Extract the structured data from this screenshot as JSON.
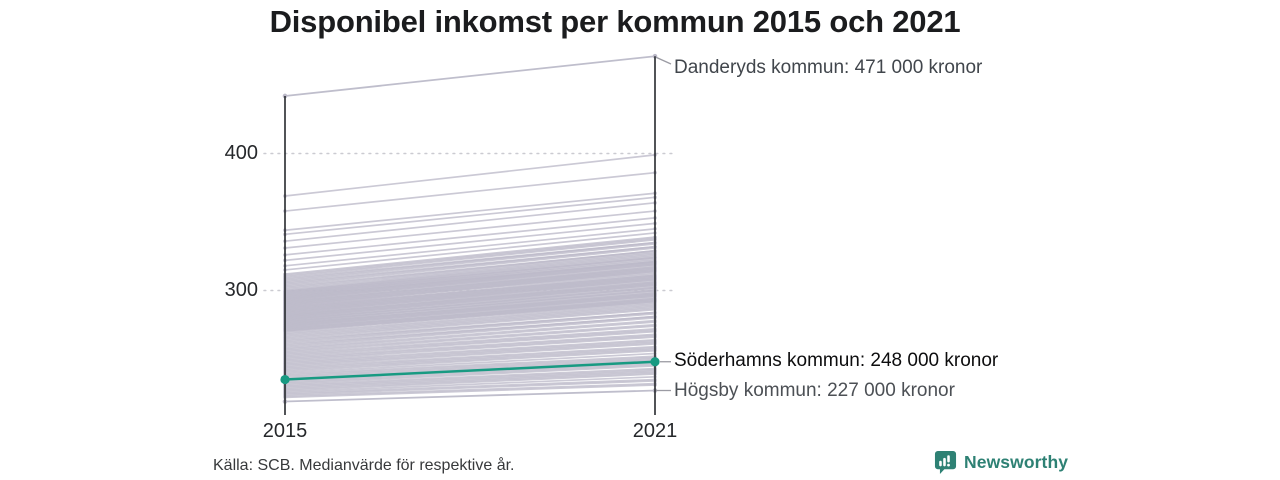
{
  "title": "Disponibel inkomst per kommun 2015 och 2021",
  "source_note": "Källa: SCB. Medianvärde för respektive år.",
  "branding": {
    "logo_label": "Newsworthy",
    "logo_color": "#2e8174"
  },
  "chart_data": {
    "type": "line",
    "subtype": "slope-chart",
    "title": "Disponibel inkomst per kommun 2015 och 2021",
    "x": [
      2015,
      2021
    ],
    "x_tick_labels": [
      "2015",
      "2021"
    ],
    "y_ticks": [
      400,
      300
    ],
    "y_tick_display": [
      "400",
      "300"
    ],
    "ylim": [
      209,
      472
    ],
    "unit": "tusen kronor",
    "grid": "dotted horizontal lines at y ticks",
    "legend_position": "none",
    "colors": {
      "highlight": "#189a82",
      "background_line": "#bcbac9",
      "axis": "#26292d",
      "grid": "#cbcbd1",
      "connector": "#9b9ba3"
    },
    "highlighted_series": [
      {
        "name": "Danderyds kommun",
        "values": [
          442,
          471
        ],
        "label": "Danderyds kommun: 471 000 kronor",
        "line_color": "#bcbac9",
        "label_color": "#41464c"
      },
      {
        "name": "Söderhamns kommun",
        "values": [
          235,
          248
        ],
        "label": "Söderhamns kommun: 248 000 kronor",
        "line_color": "#189a82",
        "label_color": "#0d0d0e"
      },
      {
        "name": "Högsby kommun",
        "values": [
          219,
          227
        ],
        "label": "Högsby kommun: 227 000 kronor",
        "line_color": "#bcbac9",
        "label_color": "#4c5055"
      }
    ],
    "background_series_estimated": [
      [
        369,
        399
      ],
      [
        358,
        386
      ],
      [
        344,
        371
      ],
      [
        341,
        368
      ],
      [
        336,
        364
      ],
      [
        331,
        358
      ],
      [
        326,
        353
      ],
      [
        322,
        349
      ],
      [
        318,
        345
      ],
      [
        315,
        342
      ],
      [
        312,
        339
      ],
      [
        311,
        338
      ],
      [
        310,
        337
      ],
      [
        309,
        335
      ],
      [
        308,
        335
      ],
      [
        307,
        334
      ],
      [
        306,
        332
      ],
      [
        305,
        332
      ],
      [
        304,
        331
      ],
      [
        303,
        329
      ],
      [
        302,
        329
      ],
      [
        301,
        328
      ],
      [
        300,
        327
      ],
      [
        299.5,
        326
      ],
      [
        299,
        325
      ],
      [
        298.5,
        324
      ],
      [
        298,
        324
      ],
      [
        297.5,
        322
      ],
      [
        297,
        323
      ],
      [
        296.5,
        321
      ],
      [
        296,
        321
      ],
      [
        295.5,
        320
      ],
      [
        295,
        321
      ],
      [
        294.5,
        319
      ],
      [
        294,
        320
      ],
      [
        293.5,
        318
      ],
      [
        293,
        319
      ],
      [
        292.5,
        317
      ],
      [
        292,
        316
      ],
      [
        291.5,
        317
      ],
      [
        291,
        315
      ],
      [
        290.5,
        316
      ],
      [
        290,
        314
      ],
      [
        289.5,
        315
      ],
      [
        289,
        313
      ],
      [
        288.5,
        314
      ],
      [
        288,
        311
      ],
      [
        287.5,
        312
      ],
      [
        287,
        310
      ],
      [
        286.5,
        311
      ],
      [
        286,
        309
      ],
      [
        285.5,
        310
      ],
      [
        285,
        308
      ],
      [
        284.5,
        309
      ],
      [
        284,
        307
      ],
      [
        283.5,
        308
      ],
      [
        283,
        306
      ],
      [
        282.5,
        305
      ],
      [
        282,
        306
      ],
      [
        281.5,
        304
      ],
      [
        281,
        305
      ],
      [
        280.5,
        303
      ],
      [
        280,
        304
      ],
      [
        279.5,
        302
      ],
      [
        279,
        301
      ],
      [
        278.5,
        302
      ],
      [
        278,
        300
      ],
      [
        277.5,
        299
      ],
      [
        277,
        300
      ],
      [
        276.5,
        298
      ],
      [
        276,
        297
      ],
      [
        275.5,
        298
      ],
      [
        275,
        296
      ],
      [
        274.5,
        297
      ],
      [
        274,
        295
      ],
      [
        273.5,
        296
      ],
      [
        273,
        294
      ],
      [
        272.5,
        293
      ],
      [
        272,
        294
      ],
      [
        271.5,
        292
      ],
      [
        271,
        293
      ],
      [
        270.5,
        291
      ],
      [
        270,
        292
      ],
      [
        269,
        290
      ],
      [
        268,
        289
      ],
      [
        267,
        288
      ],
      [
        266,
        287
      ],
      [
        265,
        286
      ],
      [
        264,
        284
      ],
      [
        263,
        284
      ],
      [
        262,
        283
      ],
      [
        261,
        281
      ],
      [
        260,
        281
      ],
      [
        259,
        280
      ],
      [
        258,
        278
      ],
      [
        257,
        277
      ],
      [
        256,
        275
      ],
      [
        255,
        274
      ],
      [
        254,
        272
      ],
      [
        253,
        271
      ],
      [
        252,
        270
      ],
      [
        251,
        268
      ],
      [
        250,
        267
      ],
      [
        249,
        266
      ],
      [
        248,
        264
      ],
      [
        247,
        263
      ],
      [
        246,
        262
      ],
      [
        245,
        261
      ],
      [
        244,
        259
      ],
      [
        243,
        258
      ],
      [
        242,
        257
      ],
      [
        241,
        256
      ],
      [
        240,
        254
      ],
      [
        239,
        252
      ],
      [
        238,
        251
      ],
      [
        237,
        250
      ],
      [
        236,
        249
      ],
      [
        235,
        248.5
      ],
      [
        234,
        247
      ],
      [
        233,
        246
      ],
      [
        232,
        245
      ],
      [
        231,
        243
      ],
      [
        230,
        242
      ],
      [
        229,
        241
      ],
      [
        228,
        240
      ],
      [
        227,
        239
      ],
      [
        226,
        237
      ],
      [
        225,
        235
      ],
      [
        224,
        234
      ],
      [
        223,
        232
      ],
      [
        222,
        231
      ]
    ]
  }
}
